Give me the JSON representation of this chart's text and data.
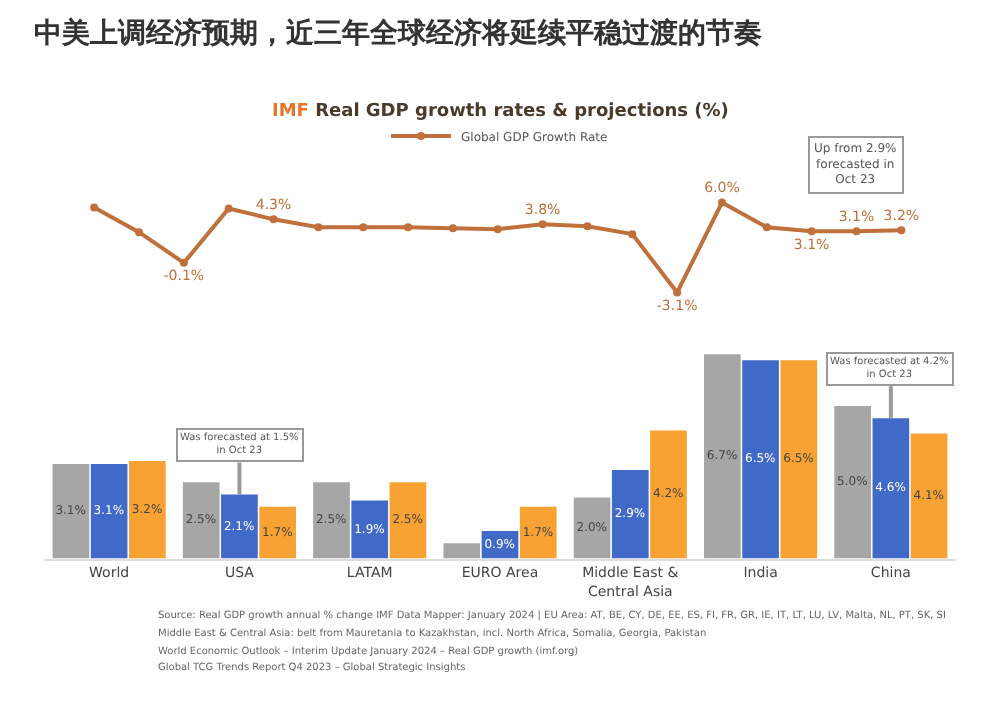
{
  "chart_data": [
    {
      "type": "line",
      "title": "中美上调经济预期，近三年全球经济将延续平稳过渡的节奏",
      "subtitle": "IMF Real GDP growth rates & projections (%)",
      "categories": [
        null,
        null,
        null,
        null,
        null,
        null,
        null,
        null,
        null,
        null,
        null,
        null,
        null,
        null,
        null,
        null,
        null,
        null,
        null
      ],
      "series": [
        {
          "name": "Global GDP Growth Rate",
          "color": "#c0703a",
          "values": [
            5.5,
            3.0,
            -0.1,
            5.4,
            4.3,
            3.5,
            3.5,
            3.5,
            3.4,
            3.3,
            3.8,
            3.6,
            2.8,
            -3.1,
            6.0,
            3.5,
            3.1,
            3.1,
            3.2
          ],
          "value_labels": [
            null,
            null,
            "-0.1%",
            null,
            "4.3%",
            null,
            null,
            null,
            null,
            null,
            "3.8%",
            null,
            null,
            "-3.1%",
            "6.0%",
            null,
            "3.1%",
            "3.1%",
            "3.2%"
          ]
        }
      ],
      "annotations": [
        "Up from 2.9% forecasted in Oct 23"
      ],
      "marker": "circle",
      "legend": "top",
      "grid": false
    },
    {
      "type": "bar",
      "categories": [
        "World",
        "USA",
        "LATAM",
        "EURO Area",
        "Middle East & Central Asia",
        "India",
        "China"
      ],
      "series": [
        {
          "color": "#a6a6a6",
          "values": [
            3.1,
            2.5,
            2.5,
            0.5,
            2.0,
            6.7,
            5.0
          ],
          "value_labels": [
            "3.1%",
            "2.5%",
            "2.5%",
            null,
            "2.0%",
            "6.7%",
            "5.0%"
          ]
        },
        {
          "color": "#4169c8",
          "values": [
            3.1,
            2.1,
            1.9,
            0.9,
            2.9,
            6.5,
            4.6
          ],
          "value_labels": [
            "3.1%",
            "2.1%",
            "1.9%",
            "0.9%",
            "2.9%",
            "6.5%",
            "4.6%"
          ]
        },
        {
          "color": "#f7a233",
          "values": [
            3.2,
            1.7,
            2.5,
            1.7,
            4.2,
            6.5,
            4.1
          ],
          "value_labels": [
            "3.2%",
            "1.7%",
            "2.5%",
            "1.7%",
            "4.2%",
            "6.5%",
            "4.1%"
          ]
        }
      ],
      "annotations": [
        {
          "text": "Was forecasted at 1.5% in Oct 23",
          "x": "USA",
          "y": 2.1
        },
        {
          "text": "Was forecasted at 4.2% in Oct 23",
          "x": "China",
          "y": 4.6
        },
        "Source: Real GDP growth annual % change IMF Data Mapper: January 2024 | EU Area: AT, BE, CY, DE, EE, ES, FI, FR, GR, IE, IT, LT, LU, LV, Malta, NL, PT, SK, SI",
        "Middle East & Central Asia: belt from Mauretania to Kazakhstan, incl. North Africa, Somalia, Georgia, Pakistan",
        "World Economic Outlook – Interim Update January 2024 – Real GDP growth (imf.org)",
        "Global TCG Trends Report Q4 2023 – Global Strategic Insights"
      ],
      "legend": false,
      "grid": false
    }
  ]
}
